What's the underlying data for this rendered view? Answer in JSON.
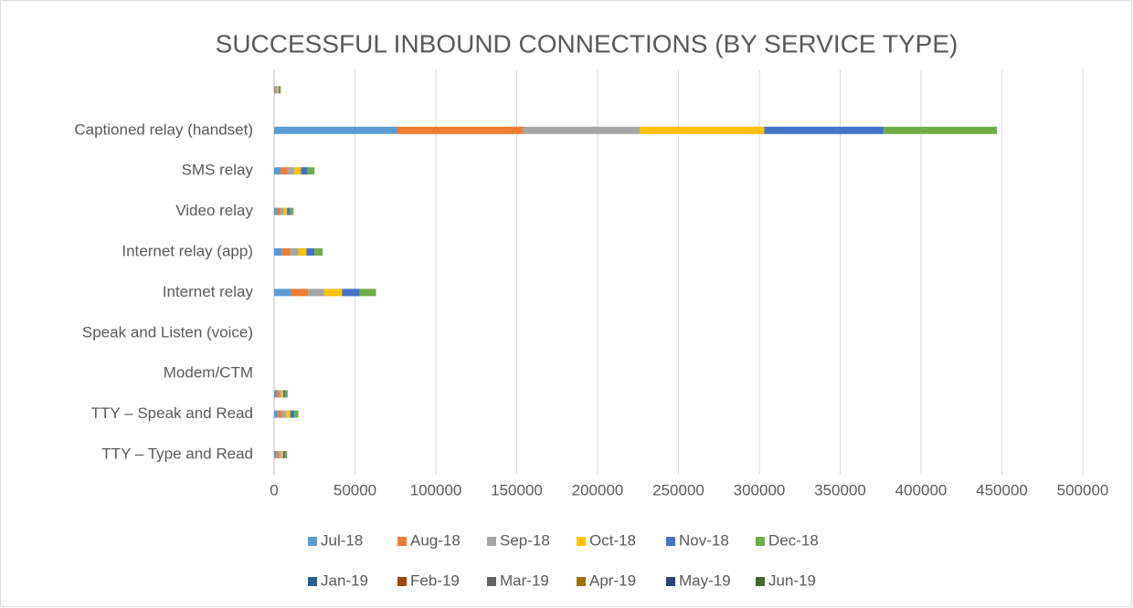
{
  "chart_data": {
    "type": "bar",
    "orientation": "horizontal",
    "stacked": true,
    "title": "SUCCESSFUL INBOUND CONNECTIONS (BY SERVICE TYPE)",
    "categories": [
      "TTY – Type and Read",
      null,
      "TTY – Speak and Read",
      null,
      "Modem/CTM",
      null,
      "Speak and Listen (voice)",
      null,
      "Internet relay",
      null,
      "Internet relay (app)",
      null,
      "Video relay",
      null,
      "SMS relay",
      null,
      "Captioned relay (handset)",
      null,
      null
    ],
    "series": [
      {
        "name": "Jul-18",
        "color": "#5b9bd5",
        "values": [
          1500,
          0,
          2500,
          1400,
          0,
          0,
          0,
          0,
          10500,
          0,
          5000,
          0,
          2000,
          0,
          4200,
          0,
          76000,
          0,
          700
        ]
      },
      {
        "name": "Aug-18",
        "color": "#ed7d31",
        "values": [
          1500,
          0,
          2500,
          1400,
          0,
          0,
          0,
          0,
          10500,
          0,
          5000,
          0,
          2000,
          0,
          4200,
          0,
          78000,
          0,
          700
        ]
      },
      {
        "name": "Sep-18",
        "color": "#a5a5a5",
        "values": [
          1300,
          0,
          2500,
          1400,
          0,
          0,
          0,
          0,
          10000,
          0,
          5000,
          0,
          2000,
          0,
          4000,
          0,
          72000,
          0,
          700
        ]
      },
      {
        "name": "Oct-18",
        "color": "#ffc000",
        "values": [
          1300,
          0,
          2500,
          1400,
          0,
          0,
          0,
          0,
          11000,
          0,
          5000,
          0,
          2000,
          0,
          4200,
          0,
          77000,
          0,
          700
        ]
      },
      {
        "name": "Nov-18",
        "color": "#4472c4",
        "values": [
          1200,
          0,
          2500,
          1400,
          0,
          0,
          0,
          0,
          11000,
          0,
          5000,
          0,
          2000,
          0,
          4200,
          0,
          74000,
          0,
          700
        ]
      },
      {
        "name": "Dec-18",
        "color": "#70ad47",
        "values": [
          1200,
          0,
          2500,
          1400,
          0,
          0,
          0,
          0,
          10000,
          0,
          5000,
          0,
          2000,
          0,
          4200,
          0,
          70000,
          0,
          700
        ]
      },
      {
        "name": "Jan-19",
        "color": "#255e91",
        "values": [
          0,
          0,
          0,
          0,
          0,
          0,
          0,
          0,
          0,
          0,
          0,
          0,
          0,
          0,
          0,
          0,
          0,
          0,
          0
        ]
      },
      {
        "name": "Feb-19",
        "color": "#9e480e",
        "values": [
          0,
          0,
          0,
          0,
          0,
          0,
          0,
          0,
          0,
          0,
          0,
          0,
          0,
          0,
          0,
          0,
          0,
          0,
          0
        ]
      },
      {
        "name": "Mar-19",
        "color": "#636363",
        "values": [
          0,
          0,
          0,
          0,
          0,
          0,
          0,
          0,
          0,
          0,
          0,
          0,
          0,
          0,
          0,
          0,
          0,
          0,
          0
        ]
      },
      {
        "name": "Apr-19",
        "color": "#997300",
        "values": [
          0,
          0,
          0,
          0,
          0,
          0,
          0,
          0,
          0,
          0,
          0,
          0,
          0,
          0,
          0,
          0,
          0,
          0,
          0
        ]
      },
      {
        "name": "May-19",
        "color": "#264478",
        "values": [
          0,
          0,
          0,
          0,
          0,
          0,
          0,
          0,
          0,
          0,
          0,
          0,
          0,
          0,
          0,
          0,
          0,
          0,
          0
        ]
      },
      {
        "name": "Jun-19",
        "color": "#43682b",
        "values": [
          0,
          0,
          0,
          0,
          0,
          0,
          0,
          0,
          0,
          0,
          0,
          0,
          0,
          0,
          0,
          0,
          0,
          0,
          0
        ]
      }
    ],
    "xlim": [
      0,
      500000
    ],
    "xticks": [
      0,
      50000,
      100000,
      150000,
      200000,
      250000,
      300000,
      350000,
      400000,
      450000,
      500000
    ],
    "grid": true,
    "legend": "bottom"
  }
}
